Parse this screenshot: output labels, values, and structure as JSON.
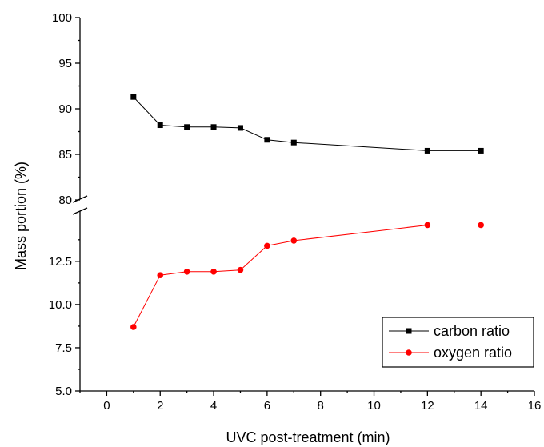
{
  "chart_data": {
    "type": "line",
    "xlabel": "UVC post-treatment (min)",
    "ylabel": "Mass portion (%)",
    "xlim": [
      -1,
      16
    ],
    "x_ticks": [
      "0",
      "2",
      "4",
      "6",
      "8",
      "10",
      "12",
      "14",
      "16"
    ],
    "y_axis_break": true,
    "upper_segment": {
      "ylim": [
        80,
        100
      ],
      "y_ticks": [
        "80",
        "85",
        "90",
        "95",
        "100"
      ]
    },
    "lower_segment": {
      "ylim": [
        5.0,
        15.5
      ],
      "y_ticks": [
        "5.0",
        "7.5",
        "10.0",
        "12.5"
      ]
    },
    "series": [
      {
        "name": "carbon ratio",
        "segment": "upper",
        "color": "#000000",
        "marker": "square",
        "x": [
          1,
          2,
          3,
          4,
          5,
          6,
          7,
          12,
          14
        ],
        "y": [
          91.3,
          88.2,
          88.0,
          88.0,
          87.9,
          86.6,
          86.3,
          85.4,
          85.4
        ]
      },
      {
        "name": "oxygen ratio",
        "segment": "lower",
        "color": "#ff0000",
        "marker": "circle",
        "x": [
          1,
          2,
          3,
          4,
          5,
          6,
          7,
          12,
          14
        ],
        "y": [
          8.7,
          11.7,
          11.9,
          11.9,
          12.0,
          13.4,
          13.7,
          14.6,
          14.6
        ]
      }
    ],
    "legend": {
      "position": "bottom-right",
      "entries": [
        "carbon ratio",
        "oxygen ratio"
      ]
    },
    "grid": false
  }
}
